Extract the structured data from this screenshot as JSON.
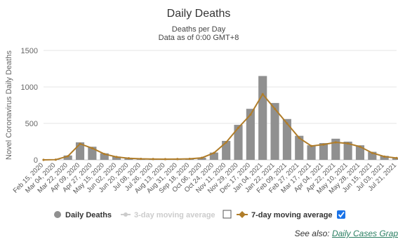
{
  "chart_data": {
    "type": "bar",
    "title": "Daily Deaths",
    "subtitle_line1": "Deaths per Day",
    "subtitle_line2": "Data as of 0:00 GMT+8",
    "ylabel": "Novel Coronavirus Daily Deaths",
    "xlabel": "",
    "ylim": [
      0,
      1500
    ],
    "yticks": [
      0,
      500,
      1000,
      1500
    ],
    "grid": true,
    "legend_position": "bottom",
    "x_tick_labels": [
      "Feb 15, 2020",
      "Mar 04, 2020",
      "Mar 22, 2020",
      "Apr 09, 2020",
      "Apr 27, 2020",
      "May 15, 2020",
      "Jun 02, 2020",
      "Jun 20, 2020",
      "Jul 08, 2020",
      "Jul 26, 2020",
      "Aug 13, 2020",
      "Aug 31, 2020",
      "Sep 18, 2020",
      "Oct 06, 2020",
      "Oct 24, 2020",
      "Nov 11, 2020",
      "Nov 29, 2020",
      "Dec 17, 2020",
      "Jan 04, 2021",
      "Jan 22, 2021",
      "Feb 09, 2021",
      "Feb 27, 2021",
      "Mar 17, 2021",
      "Apr 04, 2021",
      "Apr 22, 2021",
      "May 10, 2021",
      "May 28, 2021",
      "Jun 15, 2021",
      "Jul 03, 2021",
      "Jul 21, 2021"
    ],
    "series": [
      {
        "name": "Daily Deaths",
        "kind": "bar",
        "color": "#909090",
        "x": [
          "Feb 15, 2020",
          "Mar 04, 2020",
          "Mar 22, 2020",
          "Apr 09, 2020",
          "Apr 27, 2020",
          "May 15, 2020",
          "Jun 02, 2020",
          "Jun 20, 2020",
          "Jul 08, 2020",
          "Jul 26, 2020",
          "Aug 13, 2020",
          "Aug 31, 2020",
          "Sep 18, 2020",
          "Oct 06, 2020",
          "Oct 24, 2020",
          "Nov 11, 2020",
          "Nov 29, 2020",
          "Dec 17, 2020",
          "Jan 04, 2021",
          "Jan 22, 2021",
          "Feb 09, 2021",
          "Feb 27, 2021",
          "Mar 17, 2021",
          "Apr 04, 2021",
          "Apr 22, 2021",
          "May 10, 2021",
          "May 28, 2021",
          "Jun 15, 2021",
          "Jul 03, 2021",
          "Jul 21, 2021"
        ],
        "values": [
          0,
          5,
          60,
          240,
          180,
          90,
          45,
          25,
          15,
          12,
          10,
          12,
          15,
          30,
          100,
          260,
          480,
          700,
          1150,
          780,
          560,
          330,
          200,
          230,
          290,
          250,
          200,
          110,
          55,
          30
        ]
      },
      {
        "name": "3-day moving average",
        "kind": "line",
        "color": "#cccccc",
        "enabled": false
      },
      {
        "name": "7-day moving average",
        "kind": "line",
        "color": "#b07d2a",
        "enabled": true,
        "x": [
          "Feb 15, 2020",
          "Mar 04, 2020",
          "Mar 22, 2020",
          "Apr 09, 2020",
          "Apr 27, 2020",
          "May 15, 2020",
          "Jun 02, 2020",
          "Jun 20, 2020",
          "Jul 08, 2020",
          "Jul 26, 2020",
          "Aug 13, 2020",
          "Aug 31, 2020",
          "Sep 18, 2020",
          "Oct 06, 2020",
          "Oct 24, 2020",
          "Nov 11, 2020",
          "Nov 29, 2020",
          "Dec 17, 2020",
          "Jan 04, 2021",
          "Jan 22, 2021",
          "Feb 09, 2021",
          "Feb 27, 2021",
          "Mar 17, 2021",
          "Apr 04, 2021",
          "Apr 22, 2021",
          "May 10, 2021",
          "May 28, 2021",
          "Jun 15, 2021",
          "Jul 03, 2021",
          "Jul 21, 2021"
        ],
        "values": [
          0,
          3,
          50,
          220,
          160,
          80,
          40,
          22,
          14,
          11,
          10,
          11,
          14,
          28,
          95,
          240,
          440,
          620,
          900,
          700,
          500,
          300,
          190,
          210,
          240,
          225,
          180,
          95,
          45,
          25
        ]
      }
    ]
  },
  "see_also": {
    "prefix": "See also:",
    "link": "Daily Cases Grap"
  },
  "colors": {
    "bar": "#909090",
    "line7": "#b07d2a",
    "grid": "#e6e6e6",
    "link": "#2a7f62",
    "checkbox": "#1a73e8"
  }
}
